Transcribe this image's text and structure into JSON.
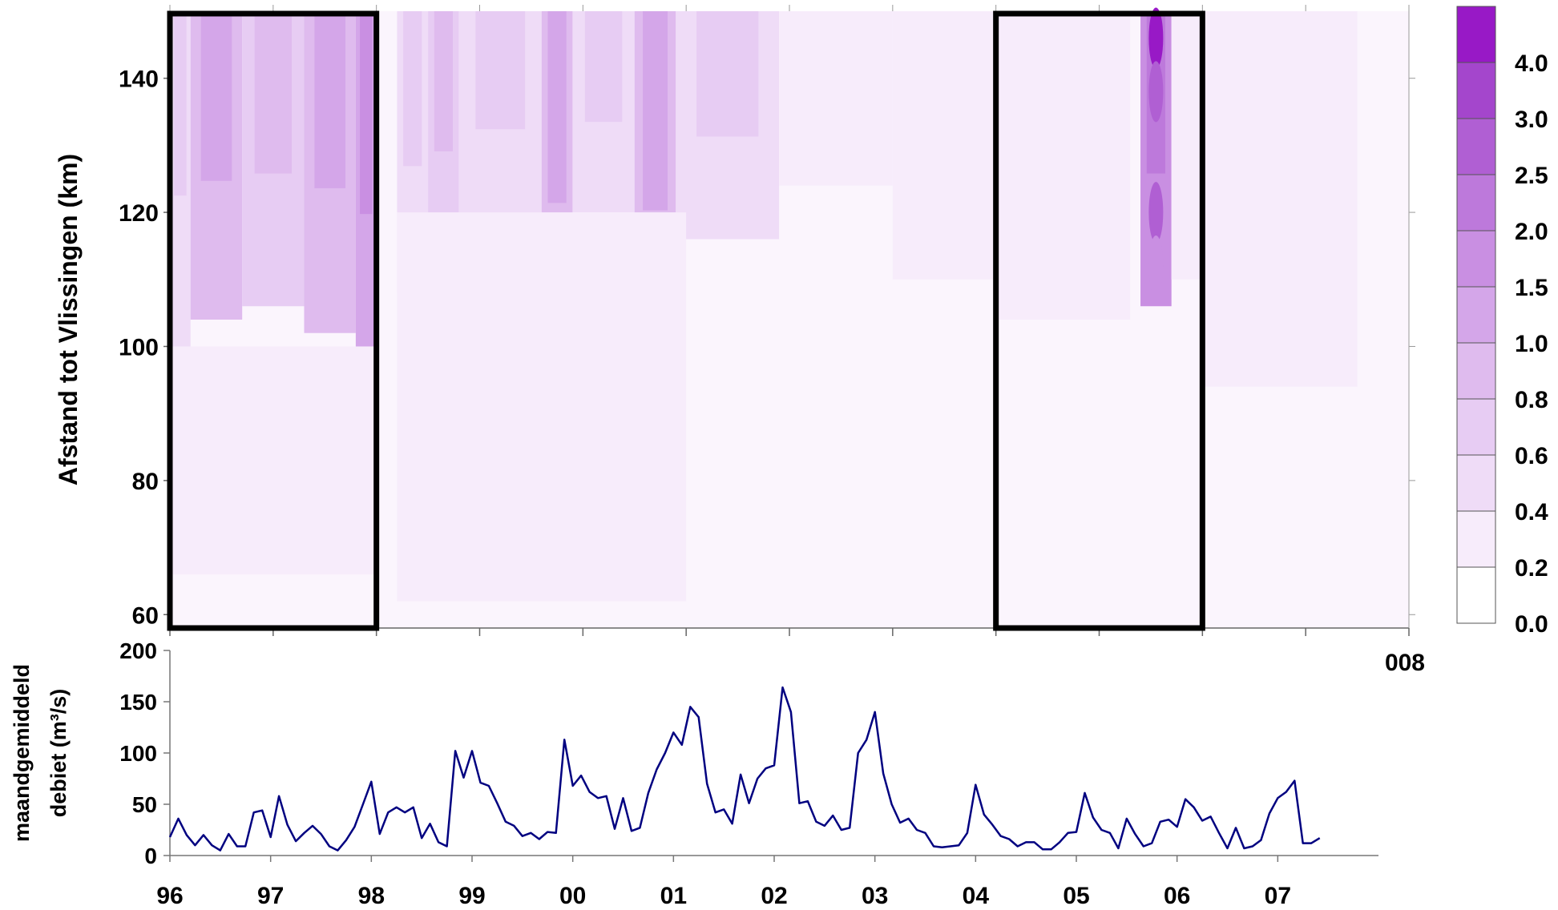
{
  "chart_data": [
    {
      "type": "heatmap",
      "title": "",
      "xlabel": "",
      "ylabel": "Afstand tot Vlissingen (km)",
      "x_tick_labels": [
        "96",
        "98",
        "00",
        "02",
        "04",
        "06",
        "008"
      ],
      "xlim": [
        1996,
        2008
      ],
      "y_ticks": [
        60,
        80,
        100,
        120,
        140
      ],
      "ylim": [
        58,
        150
      ],
      "colorbar": {
        "labels": [
          "0.0",
          "0.2",
          "0.4",
          "0.6",
          "0.8",
          "1.0",
          "1.5",
          "2.0",
          "2.5",
          "3.0",
          "4.0"
        ],
        "colors": [
          "#ffffff",
          "#f7ecfb",
          "#efdcf7",
          "#e7ccf3",
          "#dfbbee",
          "#d4a6e9",
          "#c98fe2",
          "#bd79db",
          "#b05fd3",
          "#a446cc",
          "#9819c6"
        ]
      },
      "highlight_boxes": [
        {
          "from_year": 1996,
          "to_year": 1998
        },
        {
          "from_year": 2004,
          "to_year": 2006
        }
      ],
      "bands": [
        {
          "start": 1996.0,
          "end": 1996.2,
          "level": 2,
          "top": 150,
          "bottom": 100
        },
        {
          "start": 1996.2,
          "end": 1996.7,
          "level": 4,
          "top": 150,
          "bottom": 104
        },
        {
          "start": 1996.7,
          "end": 1997.3,
          "level": 3,
          "top": 150,
          "bottom": 106
        },
        {
          "start": 1997.3,
          "end": 1997.8,
          "level": 4,
          "top": 150,
          "bottom": 102
        },
        {
          "start": 1997.8,
          "end": 1998.0,
          "level": 5,
          "top": 150,
          "bottom": 95
        },
        {
          "start": 1998.2,
          "end": 1998.5,
          "level": 2,
          "top": 150,
          "bottom": 108
        },
        {
          "start": 1998.5,
          "end": 1998.8,
          "level": 3,
          "top": 150,
          "bottom": 112
        },
        {
          "start": 1998.8,
          "end": 1999.6,
          "level": 2,
          "top": 150,
          "bottom": 118
        },
        {
          "start": 1999.6,
          "end": 1999.9,
          "level": 4,
          "top": 150,
          "bottom": 98
        },
        {
          "start": 1999.9,
          "end": 2000.5,
          "level": 2,
          "top": 150,
          "bottom": 120
        },
        {
          "start": 2000.5,
          "end": 2000.9,
          "level": 4,
          "top": 150,
          "bottom": 96
        },
        {
          "start": 2000.9,
          "end": 2001.9,
          "level": 2,
          "top": 150,
          "bottom": 116
        },
        {
          "start": 2001.9,
          "end": 2003.0,
          "level": 1,
          "top": 150,
          "bottom": 124
        },
        {
          "start": 2003.0,
          "end": 2004.0,
          "level": 1,
          "top": 150,
          "bottom": 110
        },
        {
          "start": 2004.0,
          "end": 2005.3,
          "level": 1,
          "top": 150,
          "bottom": 104
        },
        {
          "start": 2005.4,
          "end": 2005.7,
          "level": 6,
          "top": 150,
          "bottom": 106
        },
        {
          "start": 2005.7,
          "end": 2006.0,
          "level": 1,
          "top": 150,
          "bottom": 110
        },
        {
          "start": 2006.0,
          "end": 2007.5,
          "level": 1,
          "top": 150,
          "bottom": 94
        },
        {
          "start": 1996.0,
          "end": 1998.0,
          "level": 1,
          "top": 100,
          "bottom": 66
        },
        {
          "start": 1998.2,
          "end": 2001.0,
          "level": 1,
          "top": 120,
          "bottom": 62
        }
      ],
      "hotspots": [
        {
          "x": 2005.55,
          "y": 146,
          "level": 10
        },
        {
          "x": 2005.55,
          "y": 138,
          "level": 8
        },
        {
          "x": 2005.55,
          "y": 120,
          "level": 8
        },
        {
          "x": 2005.55,
          "y": 112,
          "level": 6
        }
      ]
    },
    {
      "type": "line",
      "title": "",
      "xlabel": "",
      "ylabel": [
        "maandgemiddeld",
        "debiet (m³/s)"
      ],
      "x_tick_labels": [
        "96",
        "97",
        "98",
        "99",
        "00",
        "01",
        "02",
        "03",
        "04",
        "05",
        "06",
        "07"
      ],
      "xlim": [
        1996,
        2008
      ],
      "ylim": [
        0,
        200
      ],
      "y_ticks": [
        0,
        50,
        100,
        150,
        200
      ],
      "line_color": "#000080",
      "series": [
        {
          "start_year": 1996.0,
          "step": 0.0833333,
          "values": [
            18,
            36,
            20,
            10,
            20,
            10,
            5,
            21,
            9,
            9,
            42,
            44,
            18,
            58,
            30,
            14,
            22,
            29,
            21,
            9,
            5,
            15,
            28,
            50,
            72,
            21,
            42,
            47,
            42,
            47,
            17,
            31,
            13,
            9,
            102,
            76,
            102,
            71,
            68,
            51,
            33,
            29,
            19,
            22,
            16,
            23,
            22,
            113,
            68,
            78,
            62,
            56,
            58,
            26,
            56,
            24,
            27,
            61,
            84,
            100,
            120,
            108,
            145,
            135,
            70,
            42,
            45,
            31,
            79,
            51,
            75,
            85,
            88,
            164,
            140,
            51,
            53,
            33,
            29,
            39,
            25,
            27,
            100,
            113,
            140,
            80,
            50,
            32,
            36,
            25,
            22,
            9,
            8,
            9,
            10,
            22,
            69,
            40,
            30,
            19,
            16,
            9,
            13,
            13,
            6,
            6,
            13,
            22,
            23,
            61,
            37,
            25,
            22,
            7,
            36,
            21,
            9,
            12,
            33,
            35,
            28,
            55,
            47,
            34,
            38,
            22,
            7,
            27,
            7,
            9,
            15,
            41,
            56,
            62,
            73,
            12,
            12,
            17
          ]
        }
      ]
    }
  ]
}
